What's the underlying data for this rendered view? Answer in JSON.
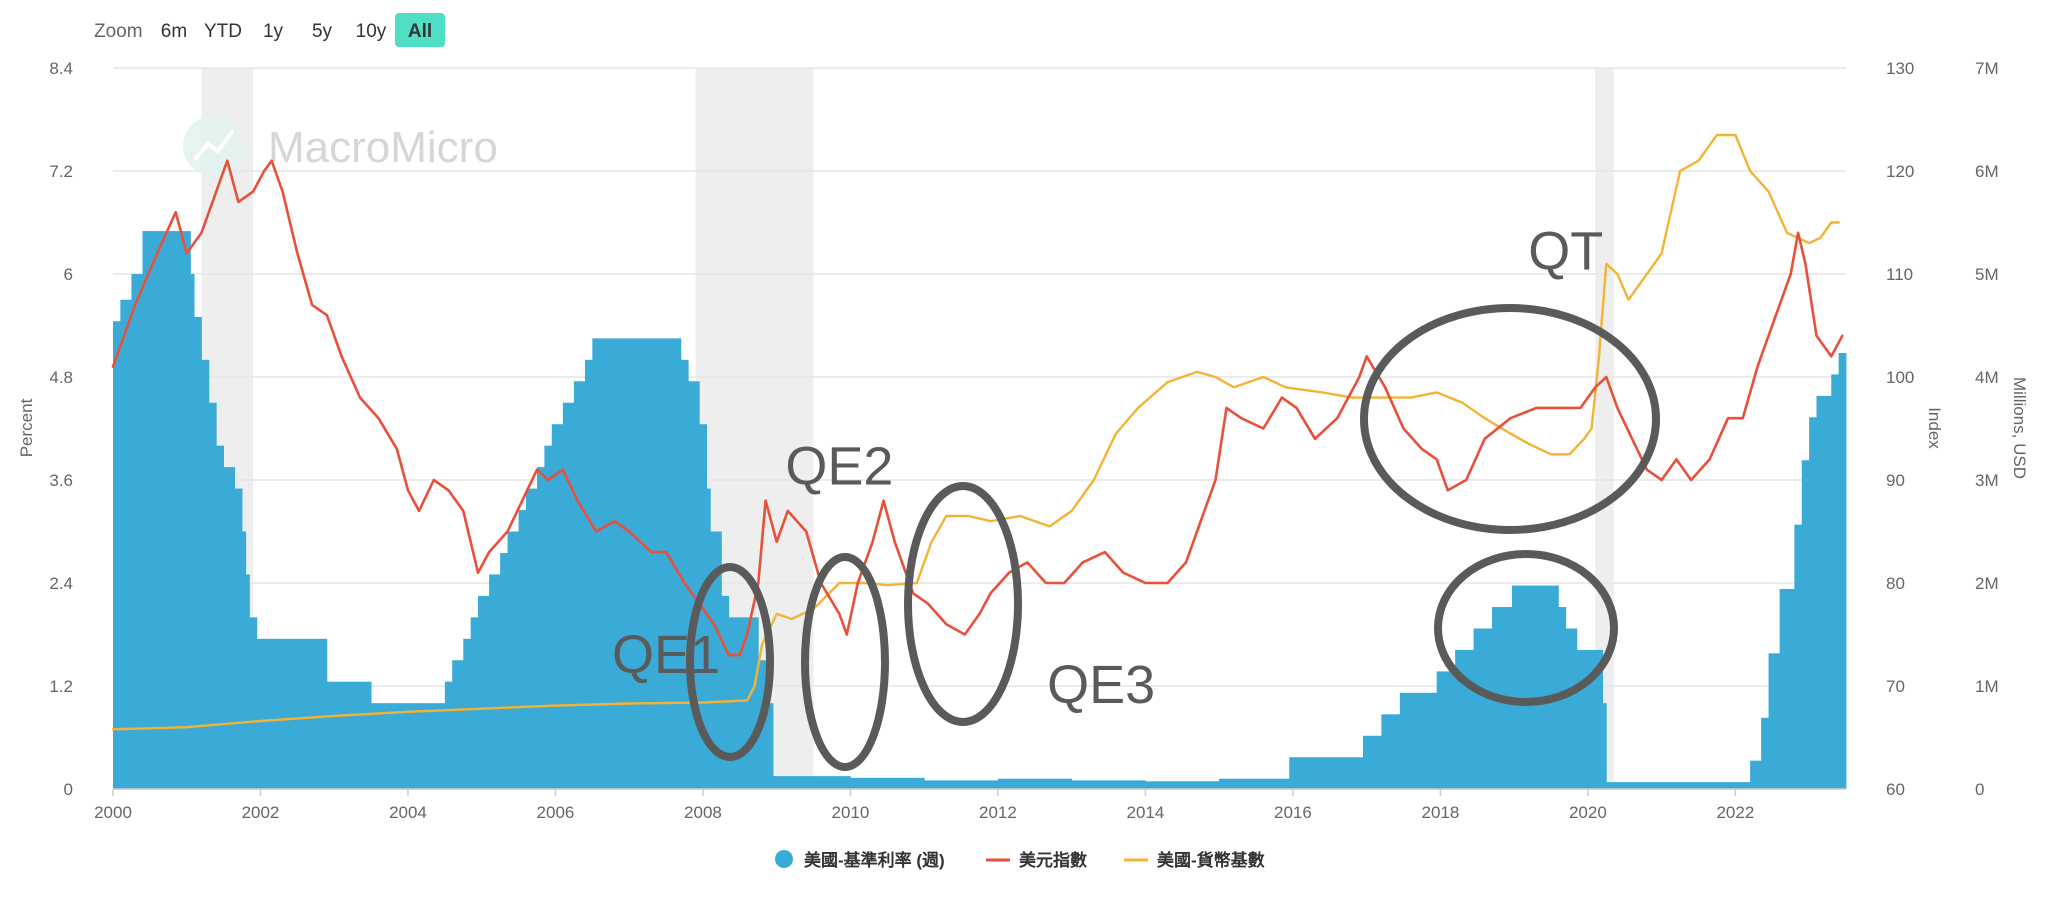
{
  "zoom": {
    "label": "Zoom",
    "buttons": [
      "6m",
      "YTD",
      "1y",
      "5y",
      "10y",
      "All"
    ],
    "active": "All"
  },
  "watermark": {
    "text": "MacroMicro"
  },
  "colors": {
    "bars": "#3aaad7",
    "dollar": "#e8503a",
    "monetary_base": "#f5b335",
    "recession": "#eeeeee",
    "ellipse": "#5a5a5a",
    "active_button": "#4fdfc4",
    "grid": "#e6e6e6",
    "axis_text": "#666666"
  },
  "annotations": [
    {
      "label": "QE1",
      "x": 2007.5,
      "y": 1.35
    },
    {
      "label": "QE2",
      "x": 2009.85,
      "y": 3.55
    },
    {
      "label": "QE3",
      "x": 2013.4,
      "y": 1.0
    },
    {
      "label": "QT",
      "x": 2019.7,
      "y": 6.05
    }
  ],
  "chart_data": {
    "type": "bar",
    "title": "",
    "xlim": [
      2000,
      2023.5
    ],
    "x_ticks": [
      "2000",
      "2002",
      "2004",
      "2006",
      "2008",
      "2010",
      "2012",
      "2014",
      "2016",
      "2018",
      "2020",
      "2022"
    ],
    "legend_position": "bottom-center",
    "grid": true,
    "axes": {
      "left": {
        "label": "Percent",
        "range": [
          0,
          8.4
        ],
        "ticks": [
          "0",
          "1.2",
          "2.4",
          "3.6",
          "4.8",
          "6",
          "7.2",
          "8.4"
        ]
      },
      "right_index": {
        "label": "Index",
        "range": [
          60,
          130
        ],
        "ticks": [
          "60",
          "70",
          "80",
          "90",
          "100",
          "110",
          "120",
          "130"
        ]
      },
      "right_usd": {
        "label": "Millions, USD",
        "range": [
          0,
          7
        ],
        "ticks": [
          "0",
          "1M",
          "2M",
          "3M",
          "4M",
          "5M",
          "6M",
          "7M"
        ]
      }
    },
    "recessions": [
      [
        2001.2,
        2001.9
      ],
      [
        2007.9,
        2009.5
      ],
      [
        2020.1,
        2020.35
      ]
    ],
    "series": [
      {
        "name": "美國-基準利率 (週)",
        "type": "bar",
        "axis": "left",
        "points": [
          [
            2000.0,
            5.45
          ],
          [
            2000.1,
            5.7
          ],
          [
            2000.25,
            6.0
          ],
          [
            2000.4,
            6.5
          ],
          [
            2000.6,
            6.5
          ],
          [
            2000.95,
            6.5
          ],
          [
            2001.05,
            6.0
          ],
          [
            2001.1,
            5.5
          ],
          [
            2001.2,
            5.0
          ],
          [
            2001.3,
            4.5
          ],
          [
            2001.4,
            4.0
          ],
          [
            2001.5,
            3.75
          ],
          [
            2001.65,
            3.5
          ],
          [
            2001.75,
            3.0
          ],
          [
            2001.8,
            2.5
          ],
          [
            2001.85,
            2.0
          ],
          [
            2001.95,
            1.75
          ],
          [
            2002.9,
            1.25
          ],
          [
            2003.5,
            1.0
          ],
          [
            2004.5,
            1.25
          ],
          [
            2004.6,
            1.5
          ],
          [
            2004.75,
            1.75
          ],
          [
            2004.85,
            2.0
          ],
          [
            2004.95,
            2.25
          ],
          [
            2005.1,
            2.5
          ],
          [
            2005.25,
            2.75
          ],
          [
            2005.35,
            3.0
          ],
          [
            2005.5,
            3.25
          ],
          [
            2005.6,
            3.5
          ],
          [
            2005.75,
            3.75
          ],
          [
            2005.85,
            4.0
          ],
          [
            2005.95,
            4.25
          ],
          [
            2006.1,
            4.5
          ],
          [
            2006.25,
            4.75
          ],
          [
            2006.4,
            5.0
          ],
          [
            2006.5,
            5.25
          ],
          [
            2007.7,
            5.0
          ],
          [
            2007.8,
            4.75
          ],
          [
            2007.95,
            4.25
          ],
          [
            2008.05,
            3.5
          ],
          [
            2008.1,
            3.0
          ],
          [
            2008.25,
            2.25
          ],
          [
            2008.35,
            2.0
          ],
          [
            2008.75,
            1.5
          ],
          [
            2008.85,
            1.0
          ],
          [
            2008.95,
            0.15
          ],
          [
            2009.5,
            0.15
          ],
          [
            2010.0,
            0.13
          ],
          [
            2011.0,
            0.1
          ],
          [
            2012.0,
            0.12
          ],
          [
            2013.0,
            0.1
          ],
          [
            2014.0,
            0.09
          ],
          [
            2015.0,
            0.12
          ],
          [
            2015.95,
            0.37
          ],
          [
            2016.95,
            0.62
          ],
          [
            2017.2,
            0.87
          ],
          [
            2017.45,
            1.12
          ],
          [
            2017.95,
            1.37
          ],
          [
            2018.2,
            1.62
          ],
          [
            2018.45,
            1.87
          ],
          [
            2018.7,
            2.12
          ],
          [
            2018.97,
            2.37
          ],
          [
            2019.6,
            2.12
          ],
          [
            2019.7,
            1.87
          ],
          [
            2019.85,
            1.62
          ],
          [
            2020.2,
            1.0
          ],
          [
            2020.25,
            0.08
          ],
          [
            2021.9,
            0.08
          ],
          [
            2022.2,
            0.33
          ],
          [
            2022.35,
            0.83
          ],
          [
            2022.45,
            1.58
          ],
          [
            2022.6,
            2.33
          ],
          [
            2022.8,
            3.08
          ],
          [
            2022.9,
            3.83
          ],
          [
            2023.0,
            4.33
          ],
          [
            2023.1,
            4.58
          ],
          [
            2023.3,
            4.83
          ],
          [
            2023.4,
            5.08
          ],
          [
            2023.5,
            5.08
          ]
        ]
      },
      {
        "name": "美元指數",
        "type": "line",
        "axis": "right_index",
        "points": [
          [
            2000.0,
            101
          ],
          [
            2000.1,
            103
          ],
          [
            2000.3,
            107
          ],
          [
            2000.6,
            112
          ],
          [
            2000.85,
            116
          ],
          [
            2001.0,
            112
          ],
          [
            2001.2,
            114
          ],
          [
            2001.45,
            119
          ],
          [
            2001.55,
            121
          ],
          [
            2001.7,
            117
          ],
          [
            2001.9,
            118
          ],
          [
            2002.05,
            120
          ],
          [
            2002.15,
            121
          ],
          [
            2002.3,
            118
          ],
          [
            2002.5,
            112
          ],
          [
            2002.7,
            107
          ],
          [
            2002.9,
            106
          ],
          [
            2003.1,
            102
          ],
          [
            2003.35,
            98
          ],
          [
            2003.6,
            96
          ],
          [
            2003.85,
            93
          ],
          [
            2004.0,
            89
          ],
          [
            2004.15,
            87
          ],
          [
            2004.35,
            90
          ],
          [
            2004.55,
            89
          ],
          [
            2004.75,
            87
          ],
          [
            2004.95,
            81
          ],
          [
            2005.1,
            83
          ],
          [
            2005.35,
            85
          ],
          [
            2005.55,
            88
          ],
          [
            2005.75,
            91
          ],
          [
            2005.9,
            90
          ],
          [
            2006.1,
            91
          ],
          [
            2006.3,
            88
          ],
          [
            2006.55,
            85
          ],
          [
            2006.8,
            86
          ],
          [
            2007.0,
            85
          ],
          [
            2007.3,
            83
          ],
          [
            2007.5,
            83
          ],
          [
            2007.75,
            80
          ],
          [
            2007.95,
            78
          ],
          [
            2008.15,
            76
          ],
          [
            2008.35,
            73
          ],
          [
            2008.5,
            73
          ],
          [
            2008.6,
            75
          ],
          [
            2008.75,
            80
          ],
          [
            2008.85,
            88
          ],
          [
            2009.0,
            84
          ],
          [
            2009.15,
            87
          ],
          [
            2009.4,
            85
          ],
          [
            2009.6,
            80
          ],
          [
            2009.85,
            77
          ],
          [
            2009.95,
            75
          ],
          [
            2010.1,
            80
          ],
          [
            2010.3,
            84
          ],
          [
            2010.45,
            88
          ],
          [
            2010.6,
            84
          ],
          [
            2010.85,
            79
          ],
          [
            2011.05,
            78
          ],
          [
            2011.3,
            76
          ],
          [
            2011.55,
            75
          ],
          [
            2011.75,
            77
          ],
          [
            2011.9,
            79
          ],
          [
            2012.15,
            81
          ],
          [
            2012.4,
            82
          ],
          [
            2012.65,
            80
          ],
          [
            2012.9,
            80
          ],
          [
            2013.15,
            82
          ],
          [
            2013.45,
            83
          ],
          [
            2013.7,
            81
          ],
          [
            2014.0,
            80
          ],
          [
            2014.3,
            80
          ],
          [
            2014.55,
            82
          ],
          [
            2014.75,
            86
          ],
          [
            2014.95,
            90
          ],
          [
            2015.1,
            97
          ],
          [
            2015.3,
            96
          ],
          [
            2015.6,
            95
          ],
          [
            2015.85,
            98
          ],
          [
            2016.05,
            97
          ],
          [
            2016.3,
            94
          ],
          [
            2016.6,
            96
          ],
          [
            2016.9,
            100
          ],
          [
            2017.0,
            102
          ],
          [
            2017.25,
            99
          ],
          [
            2017.5,
            95
          ],
          [
            2017.75,
            93
          ],
          [
            2017.95,
            92
          ],
          [
            2018.1,
            89
          ],
          [
            2018.35,
            90
          ],
          [
            2018.6,
            94
          ],
          [
            2018.95,
            96
          ],
          [
            2019.3,
            97
          ],
          [
            2019.6,
            97
          ],
          [
            2019.9,
            97
          ],
          [
            2020.1,
            99
          ],
          [
            2020.25,
            100
          ],
          [
            2020.4,
            97
          ],
          [
            2020.6,
            94
          ],
          [
            2020.8,
            91
          ],
          [
            2021.0,
            90
          ],
          [
            2021.2,
            92
          ],
          [
            2021.4,
            90
          ],
          [
            2021.65,
            92
          ],
          [
            2021.9,
            96
          ],
          [
            2022.1,
            96
          ],
          [
            2022.3,
            101
          ],
          [
            2022.55,
            106
          ],
          [
            2022.75,
            110
          ],
          [
            2022.85,
            114
          ],
          [
            2022.95,
            111
          ],
          [
            2023.1,
            104
          ],
          [
            2023.3,
            102
          ],
          [
            2023.45,
            104
          ]
        ]
      },
      {
        "name": "美國-貨幣基數",
        "type": "line",
        "axis": "right_usd",
        "points": [
          [
            2000.0,
            0.58
          ],
          [
            2001.0,
            0.6
          ],
          [
            2002.0,
            0.66
          ],
          [
            2003.0,
            0.71
          ],
          [
            2004.0,
            0.75
          ],
          [
            2005.0,
            0.78
          ],
          [
            2006.0,
            0.81
          ],
          [
            2007.0,
            0.83
          ],
          [
            2008.0,
            0.84
          ],
          [
            2008.6,
            0.86
          ],
          [
            2008.7,
            1.0
          ],
          [
            2008.8,
            1.4
          ],
          [
            2009.0,
            1.7
          ],
          [
            2009.2,
            1.65
          ],
          [
            2009.5,
            1.75
          ],
          [
            2009.85,
            2.0
          ],
          [
            2010.2,
            2.0
          ],
          [
            2010.5,
            1.98
          ],
          [
            2010.9,
            2.0
          ],
          [
            2011.1,
            2.4
          ],
          [
            2011.3,
            2.65
          ],
          [
            2011.6,
            2.65
          ],
          [
            2011.9,
            2.6
          ],
          [
            2012.3,
            2.65
          ],
          [
            2012.7,
            2.55
          ],
          [
            2013.0,
            2.7
          ],
          [
            2013.3,
            3.0
          ],
          [
            2013.6,
            3.45
          ],
          [
            2013.9,
            3.7
          ],
          [
            2014.3,
            3.95
          ],
          [
            2014.7,
            4.05
          ],
          [
            2014.95,
            4.0
          ],
          [
            2015.2,
            3.9
          ],
          [
            2015.6,
            4.0
          ],
          [
            2015.9,
            3.9
          ],
          [
            2016.4,
            3.85
          ],
          [
            2016.8,
            3.8
          ],
          [
            2017.2,
            3.8
          ],
          [
            2017.6,
            3.8
          ],
          [
            2017.95,
            3.85
          ],
          [
            2018.3,
            3.75
          ],
          [
            2018.6,
            3.6
          ],
          [
            2018.95,
            3.45
          ],
          [
            2019.2,
            3.35
          ],
          [
            2019.5,
            3.25
          ],
          [
            2019.75,
            3.25
          ],
          [
            2019.95,
            3.4
          ],
          [
            2020.05,
            3.5
          ],
          [
            2020.15,
            4.2
          ],
          [
            2020.25,
            5.1
          ],
          [
            2020.4,
            5.0
          ],
          [
            2020.55,
            4.75
          ],
          [
            2020.8,
            5.0
          ],
          [
            2021.0,
            5.2
          ],
          [
            2021.25,
            6.0
          ],
          [
            2021.5,
            6.1
          ],
          [
            2021.75,
            6.35
          ],
          [
            2022.0,
            6.35
          ],
          [
            2022.2,
            6.0
          ],
          [
            2022.45,
            5.8
          ],
          [
            2022.7,
            5.4
          ],
          [
            2022.85,
            5.35
          ],
          [
            2023.0,
            5.3
          ],
          [
            2023.15,
            5.35
          ],
          [
            2023.3,
            5.5
          ],
          [
            2023.4,
            5.5
          ]
        ]
      }
    ]
  }
}
